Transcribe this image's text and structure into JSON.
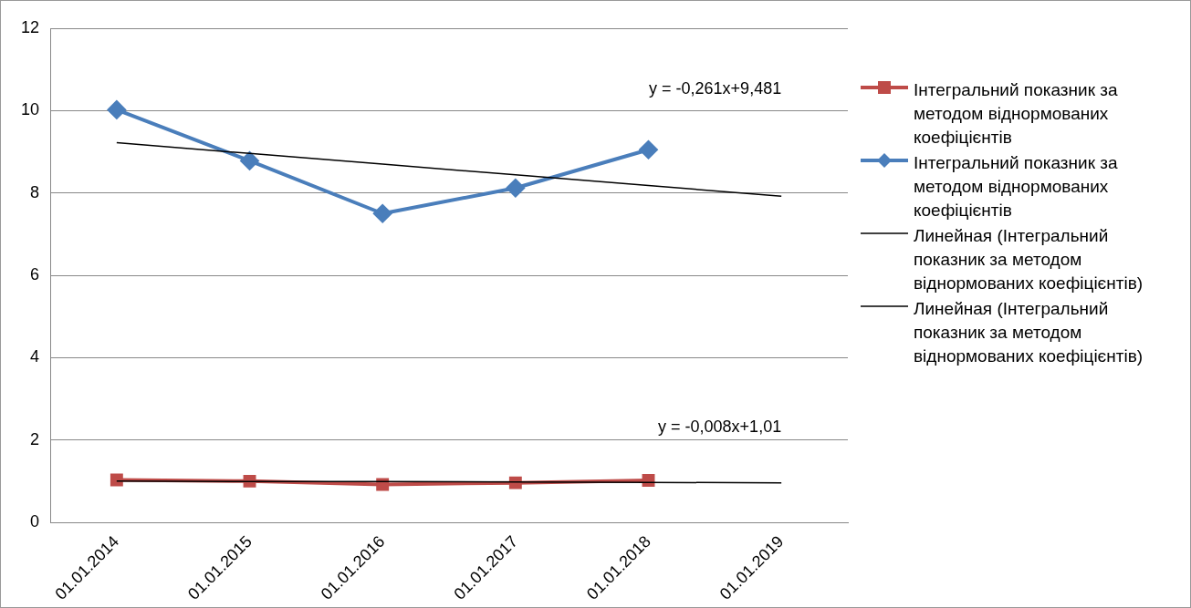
{
  "chart_data": {
    "type": "line",
    "categories": [
      "01.01.2014",
      "01.01.2015",
      "01.01.2016",
      "01.01.2017",
      "01.01.2018",
      "01.01.2019"
    ],
    "series": [
      {
        "name": "Інтегральний показник за методом віднормованих коефіцієнтів",
        "color": "#be4b48",
        "marker": "square",
        "values": [
          1.03,
          1.0,
          0.92,
          0.96,
          1.02,
          null
        ]
      },
      {
        "name": "Інтегральний показник за методом віднормованих коефіцієнтів",
        "color": "#4a7ebb",
        "marker": "diamond",
        "values": [
          10.02,
          8.78,
          7.5,
          8.12,
          9.05,
          null
        ]
      },
      {
        "name": "Линейная (Інтегральний показник за методом віднормованих коефіцієнтів)",
        "color": "#000000",
        "marker": "none",
        "values": [
          1.0,
          0.99,
          0.99,
          0.98,
          0.97,
          0.96
        ]
      },
      {
        "name": "Линейная (Інтегральний показник за методом віднормованих коефіцієнтів)",
        "color": "#000000",
        "marker": "none",
        "values": [
          9.22,
          8.96,
          8.7,
          8.44,
          8.18,
          7.92
        ]
      }
    ],
    "ylim": [
      0,
      12
    ],
    "yticks": [
      0,
      2,
      4,
      6,
      8,
      10,
      12
    ],
    "grid": "y",
    "legend": "right",
    "annotations": [
      "y = -0,261x+9,481",
      "y = -0,008x+1,01"
    ]
  }
}
